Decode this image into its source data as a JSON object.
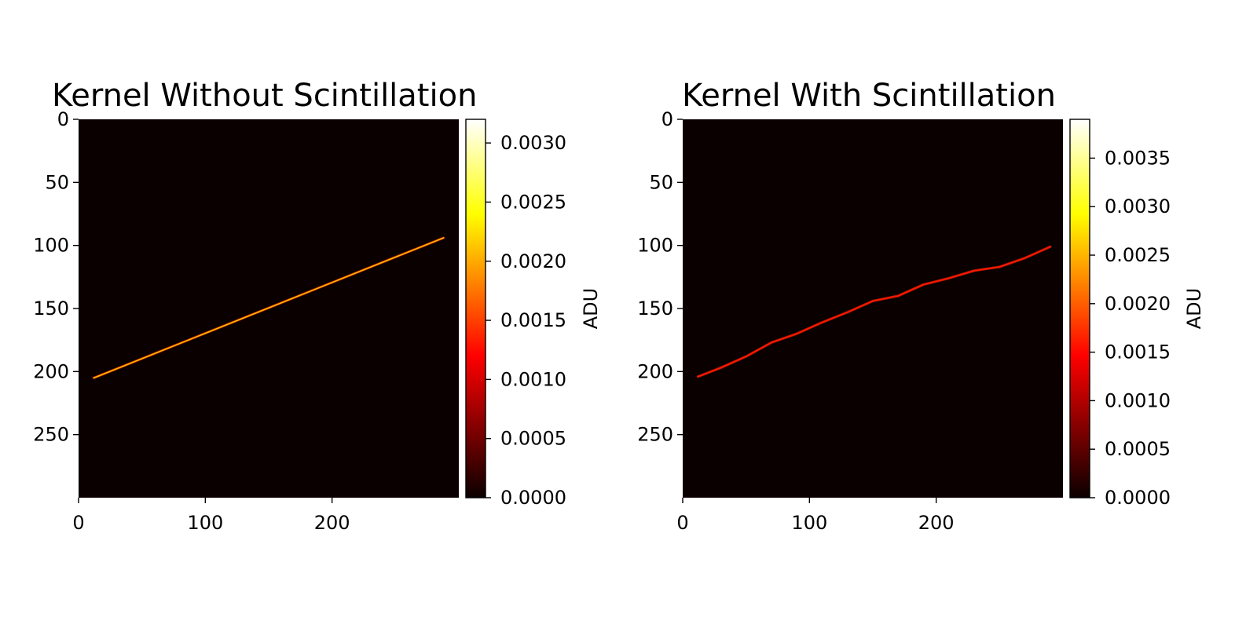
{
  "figure": {
    "background": "#ffffff"
  },
  "chart_data": [
    {
      "type": "heatmap",
      "title": "Kernel Without Scintillation",
      "colormap": "hot",
      "background_value": 0.0,
      "xlim": [
        0,
        300
      ],
      "ylim": [
        300,
        0
      ],
      "x_ticks": [
        0,
        100,
        200
      ],
      "y_ticks": [
        0,
        50,
        100,
        150,
        200,
        250
      ],
      "trail": {
        "description_points": [
          [
            12,
            205
          ],
          [
            288,
            94
          ]
        ],
        "x": [
          12,
          288
        ],
        "y": [
          205,
          94
        ],
        "value": 0.0021
      },
      "colorbar": {
        "label": "ADU",
        "min": 0.0,
        "max": 0.0032,
        "ticks": [
          "0.0000",
          "0.0005",
          "0.0010",
          "0.0015",
          "0.0020",
          "0.0025",
          "0.0030"
        ]
      }
    },
    {
      "type": "heatmap",
      "title": "Kernel With Scintillation",
      "colormap": "hot",
      "background_value": 0.0,
      "xlim": [
        0,
        300
      ],
      "ylim": [
        300,
        0
      ],
      "x_ticks": [
        0,
        100,
        200
      ],
      "y_ticks": [
        0,
        50,
        100,
        150,
        200,
        250
      ],
      "trail": {
        "x": [
          12,
          30,
          50,
          70,
          90,
          110,
          130,
          150,
          170,
          190,
          210,
          230,
          250,
          270,
          290
        ],
        "y": [
          204,
          197,
          188,
          177,
          170,
          161,
          153,
          144,
          140,
          131,
          126,
          120,
          117,
          110,
          101
        ],
        "value": 0.0016
      },
      "colorbar": {
        "label": "ADU",
        "min": 0.0,
        "max": 0.0039,
        "ticks": [
          "0.0000",
          "0.0005",
          "0.0010",
          "0.0015",
          "0.0020",
          "0.0025",
          "0.0030",
          "0.0035"
        ]
      }
    }
  ]
}
